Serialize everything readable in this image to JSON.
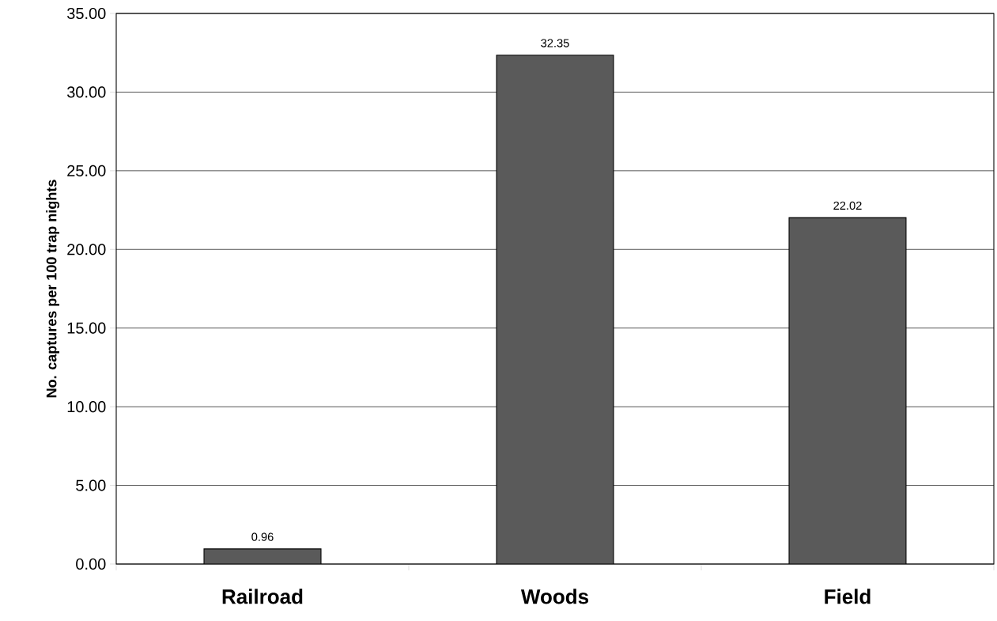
{
  "chart_data": {
    "type": "bar",
    "ylabel": "No. captures per 100 trap nights",
    "categories": [
      "Railroad",
      "Woods",
      "Field"
    ],
    "values": [
      0.96,
      32.35,
      22.02
    ],
    "value_labels": [
      "0.96",
      "32.35",
      "22.02"
    ],
    "color": "#5a5a5a",
    "ylim": [
      0,
      35
    ],
    "yticks": [
      {
        "value": 0,
        "label": "0.00"
      },
      {
        "value": 5,
        "label": "5.00"
      },
      {
        "value": 10,
        "label": "10.00"
      },
      {
        "value": 15,
        "label": "15.00"
      },
      {
        "value": 20,
        "label": "20.00"
      },
      {
        "value": 25,
        "label": "25.00"
      },
      {
        "value": 30,
        "label": "30.00"
      },
      {
        "value": 35,
        "label": "35.00"
      }
    ],
    "grid": "y"
  }
}
